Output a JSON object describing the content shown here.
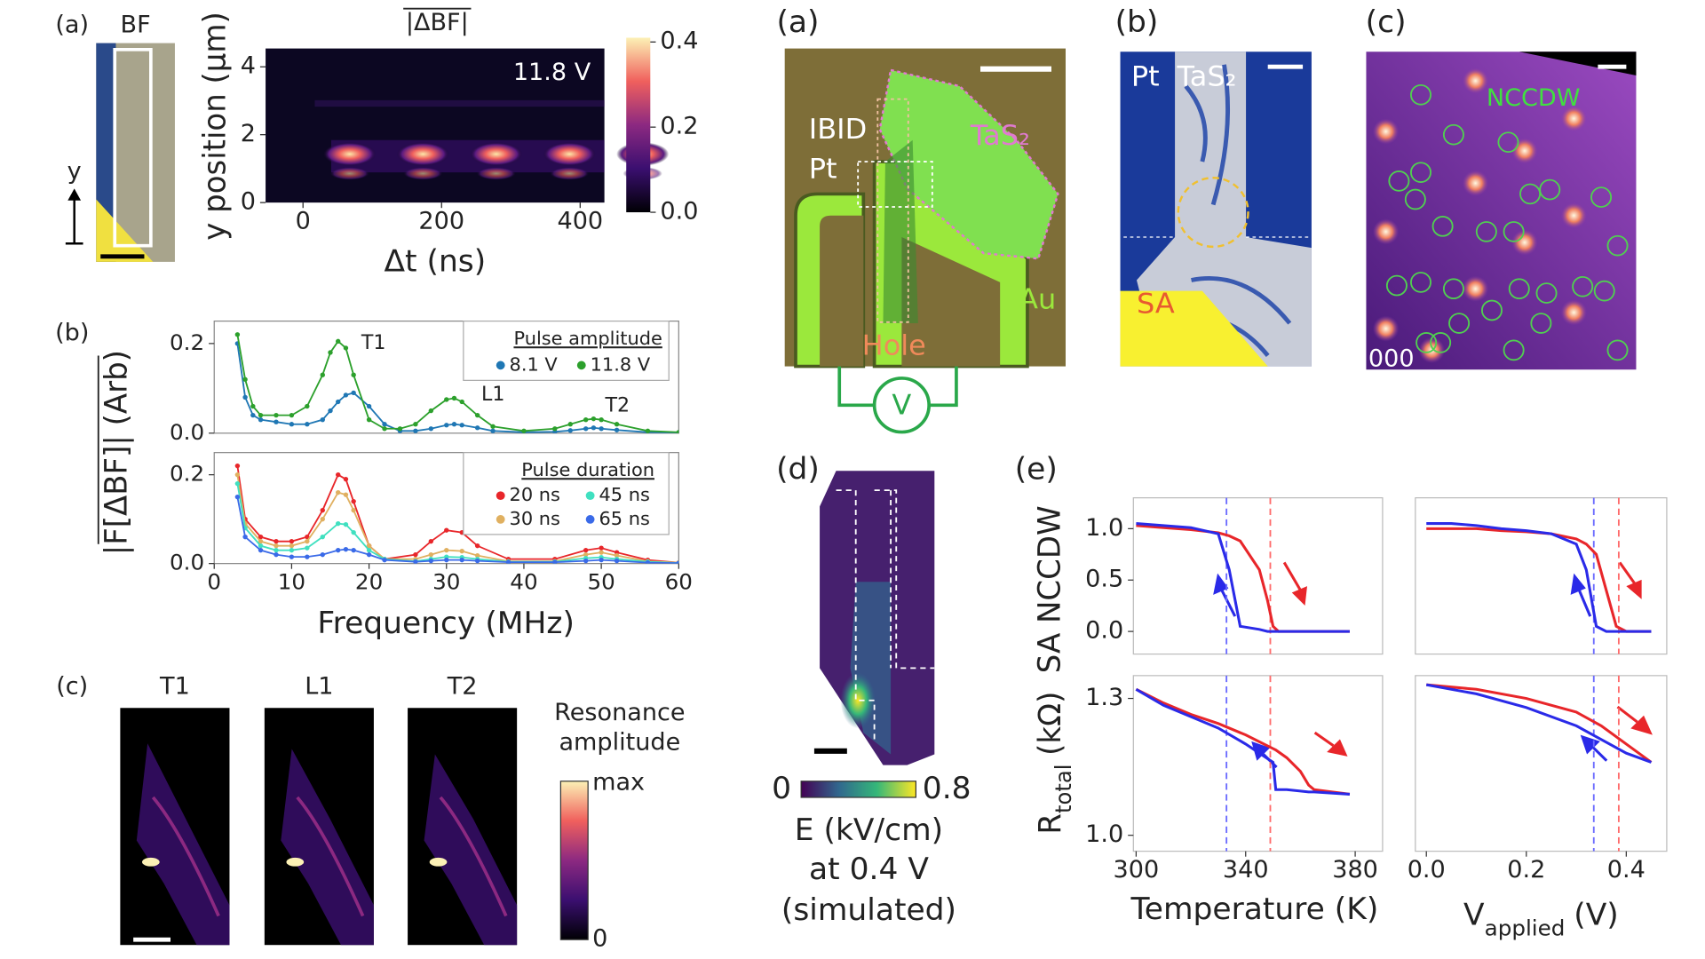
{
  "figure": {
    "a_label": "(a)",
    "bf_label": "BF",
    "y_arrow": "y",
    "b_label": "(b)",
    "c_label": "(c)",
    "c_maps": [
      "T1",
      "L1",
      "T2"
    ],
    "c_colorbar_title": [
      "Resonance",
      "amplitude"
    ],
    "c_colorbar_ticks": [
      "max",
      "0"
    ],
    "ra_label": "(a)",
    "ra_ibid": "IBID",
    "ra_pt": "Pt",
    "ra_tas2": "TaS₂",
    "ra_au": "Au",
    "ra_hole": "Hole",
    "ra_v": "V",
    "rb_label": "(b)",
    "rb_pt": "Pt",
    "rb_tas2": "TaS₂",
    "rb_sa": "SA",
    "rc_label": "(c)",
    "rc_nccdw": "NCCDW",
    "rc_000": "000",
    "rd_label": "(d)",
    "rd_colorbar_ticks": [
      0,
      0.8
    ],
    "rd_caption": [
      "E (kV/cm)",
      "at 0.4 V",
      "(simulated)"
    ],
    "re_label": "(e)"
  },
  "chart_data": [
    {
      "type": "heatmap",
      "title": "|ΔBF|",
      "annotation": "11.8 V",
      "x_label": "Δt (ns)",
      "y_label": "y position (μm)",
      "xlim": [
        -54,
        435
      ],
      "xticks": [
        0,
        200,
        400
      ],
      "ylim": [
        0,
        4.54
      ],
      "yticks": [
        0,
        2,
        4
      ],
      "colorbar_lim": [
        0,
        0.41
      ],
      "colorbar_ticks": [
        {
          "value": 0,
          "label": "0.0"
        },
        0.2,
        0.4
      ]
    },
    {
      "type": "line",
      "y_label": "|F[ΔBF]| (Arb)",
      "markers": true,
      "legend_title": "Pulse amplitude",
      "legend": "upper right",
      "xlim": [
        0,
        60
      ],
      "ylim": [
        0,
        0.25
      ],
      "yticks": [
        {
          "value": 0,
          "label": "0.0"
        },
        0.2
      ],
      "x": [
        3,
        4,
        5,
        6,
        8,
        10,
        12,
        14,
        15,
        16,
        17,
        18,
        20,
        22,
        24,
        26,
        28,
        30,
        31,
        32,
        34,
        36,
        40,
        44,
        46,
        48,
        49,
        50,
        52,
        56,
        60
      ],
      "series": [
        {
          "name": "8.1 V",
          "color": "#1f77b4",
          "values": [
            0.2,
            0.08,
            0.04,
            0.03,
            0.025,
            0.02,
            0.02,
            0.03,
            0.05,
            0.07,
            0.085,
            0.09,
            0.06,
            0.02,
            0.005,
            0.005,
            0.01,
            0.018,
            0.02,
            0.018,
            0.012,
            0.005,
            0.002,
            0.003,
            0.006,
            0.01,
            0.012,
            0.01,
            0.007,
            0.002,
            0.001
          ]
        },
        {
          "name": "11.8 V",
          "color": "#2ca02c",
          "values": [
            0.22,
            0.12,
            0.06,
            0.04,
            0.04,
            0.04,
            0.06,
            0.13,
            0.18,
            0.205,
            0.19,
            0.13,
            0.03,
            0.01,
            0.01,
            0.02,
            0.05,
            0.075,
            0.078,
            0.07,
            0.04,
            0.015,
            0.005,
            0.01,
            0.02,
            0.03,
            0.032,
            0.03,
            0.02,
            0.005,
            0.002
          ]
        }
      ],
      "annotations": [
        {
          "text": "T1",
          "x": 19,
          "y": 0.2
        },
        {
          "text": "L1",
          "x": 34.5,
          "y": 0.085
        },
        {
          "text": "T2",
          "x": 50.5,
          "y": 0.06
        }
      ]
    },
    {
      "type": "line",
      "x_label": "Frequency (MHz)",
      "markers": true,
      "legend_title": "Pulse duration",
      "legend": "upper right",
      "xlim": [
        0,
        60
      ],
      "xticks": [
        0,
        10,
        20,
        30,
        40,
        50,
        60
      ],
      "ylim": [
        0,
        0.25
      ],
      "yticks": [
        {
          "value": 0,
          "label": "0.0"
        },
        0.2
      ],
      "x": [
        3,
        4,
        6,
        8,
        10,
        12,
        14,
        16,
        17,
        18,
        20,
        22,
        26,
        28,
        30,
        32,
        34,
        38,
        44,
        48,
        50,
        52,
        56,
        60
      ],
      "series": [
        {
          "name": "20 ns",
          "color": "#e8262a",
          "values": [
            0.22,
            0.1,
            0.06,
            0.05,
            0.05,
            0.06,
            0.12,
            0.2,
            0.19,
            0.14,
            0.04,
            0.01,
            0.02,
            0.05,
            0.075,
            0.07,
            0.04,
            0.01,
            0.01,
            0.03,
            0.035,
            0.025,
            0.008,
            0.002
          ]
        },
        {
          "name": "30 ns",
          "color": "#e0b060",
          "values": [
            0.2,
            0.09,
            0.05,
            0.04,
            0.04,
            0.05,
            0.1,
            0.16,
            0.155,
            0.12,
            0.04,
            0.01,
            0.01,
            0.02,
            0.03,
            0.028,
            0.018,
            0.005,
            0.005,
            0.02,
            0.025,
            0.018,
            0.005,
            0.002
          ]
        },
        {
          "name": "45 ns",
          "color": "#40e0c0",
          "values": [
            0.18,
            0.08,
            0.04,
            0.03,
            0.03,
            0.035,
            0.06,
            0.09,
            0.088,
            0.07,
            0.03,
            0.01,
            0.005,
            0.01,
            0.015,
            0.014,
            0.01,
            0.004,
            0.004,
            0.012,
            0.014,
            0.01,
            0.004,
            0.001
          ]
        },
        {
          "name": "65 ns",
          "color": "#3a6ae8",
          "values": [
            0.15,
            0.06,
            0.03,
            0.02,
            0.015,
            0.015,
            0.02,
            0.03,
            0.032,
            0.03,
            0.02,
            0.008,
            0.004,
            0.006,
            0.008,
            0.008,
            0.006,
            0.003,
            0.003,
            0.006,
            0.008,
            0.006,
            0.002,
            0.001
          ]
        }
      ]
    },
    {
      "type": "line",
      "y_label": "SA NCCDW",
      "xlim": [
        299,
        390
      ],
      "ylim": [
        -0.22,
        1.3
      ],
      "yticks": [
        {
          "value": 0,
          "label": "0.0"
        },
        0.5,
        {
          "value": 1,
          "label": "1.0"
        }
      ],
      "x": [
        300,
        310,
        320,
        330,
        334,
        338,
        345,
        348,
        350,
        352,
        360,
        370,
        378
      ],
      "series": [
        {
          "color": "#e8262a",
          "values": [
            1.03,
            1.01,
            0.99,
            0.96,
            0.93,
            0.88,
            0.6,
            0.3,
            0.05,
            0.0,
            0.0,
            0.0,
            0.0
          ]
        },
        {
          "color": "#2a2ae8",
          "values": [
            1.05,
            1.03,
            1.01,
            0.95,
            0.6,
            0.05,
            0.02,
            0.0,
            0.0,
            0.0,
            0.0,
            0.0,
            0.0
          ]
        }
      ],
      "vlines": [
        {
          "x": 333,
          "color": "#6b6bff"
        },
        {
          "x": 349,
          "color": "#ff6b6b"
        }
      ]
    },
    {
      "type": "line",
      "xlim": [
        -0.022,
        0.481
      ],
      "ylim": [
        -0.22,
        1.3
      ],
      "x": [
        0.0,
        0.05,
        0.1,
        0.15,
        0.2,
        0.25,
        0.3,
        0.32,
        0.34,
        0.36,
        0.38,
        0.4,
        0.45
      ],
      "series": [
        {
          "color": "#e8262a",
          "values": [
            1.0,
            1.0,
            1.0,
            0.98,
            0.97,
            0.95,
            0.9,
            0.85,
            0.75,
            0.4,
            0.05,
            0.0,
            0.0
          ]
        },
        {
          "color": "#2a2ae8",
          "values": [
            1.05,
            1.05,
            1.03,
            1.0,
            0.98,
            0.95,
            0.85,
            0.6,
            0.05,
            0.0,
            0.0,
            0.0,
            0.0
          ]
        }
      ],
      "vlines": [
        {
          "x": 0.335,
          "color": "#6b6bff"
        },
        {
          "x": 0.385,
          "color": "#ff6b6b"
        }
      ]
    },
    {
      "type": "line",
      "y_label": {
        "main": "R",
        "sub": "total",
        "unit": "(kΩ)"
      },
      "x_label": "Temperature (K)",
      "xlim": [
        299,
        390
      ],
      "xticks": [
        300,
        340,
        380
      ],
      "ylim": [
        0.965,
        1.35
      ],
      "yticks": [
        {
          "value": 1,
          "label": "1.0"
        },
        1.3
      ],
      "x": [
        300,
        310,
        320,
        330,
        340,
        350,
        351,
        355,
        360,
        363,
        365,
        378
      ],
      "series": [
        {
          "color": "#e8262a",
          "values": [
            1.32,
            1.29,
            1.265,
            1.245,
            1.22,
            1.19,
            1.187,
            1.17,
            1.14,
            1.11,
            1.1,
            1.09
          ]
        },
        {
          "color": "#2a2ae8",
          "values": [
            1.32,
            1.285,
            1.26,
            1.235,
            1.2,
            1.16,
            1.1,
            1.1,
            1.097,
            1.095,
            1.095,
            1.09
          ]
        }
      ],
      "vlines": [
        {
          "x": 333,
          "color": "#6b6bff"
        },
        {
          "x": 349,
          "color": "#ff6b6b"
        }
      ]
    },
    {
      "type": "line",
      "x_label": {
        "main": "V",
        "sub": "applied",
        "unit": "(V)"
      },
      "xlim": [
        -0.022,
        0.481
      ],
      "xticks": [
        {
          "value": 0,
          "label": "0.0"
        },
        0.2,
        0.4
      ],
      "ylim": [
        0.965,
        1.35
      ],
      "x": [
        0.0,
        0.1,
        0.2,
        0.3,
        0.35,
        0.4,
        0.45
      ],
      "series": [
        {
          "color": "#e8262a",
          "values": [
            1.33,
            1.32,
            1.3,
            1.27,
            1.24,
            1.2,
            1.16
          ]
        },
        {
          "color": "#2a2ae8",
          "values": [
            1.33,
            1.31,
            1.28,
            1.24,
            1.21,
            1.18,
            1.16
          ]
        }
      ],
      "vlines": [
        {
          "x": 0.335,
          "color": "#6b6bff"
        },
        {
          "x": 0.385,
          "color": "#ff6b6b"
        }
      ]
    }
  ]
}
